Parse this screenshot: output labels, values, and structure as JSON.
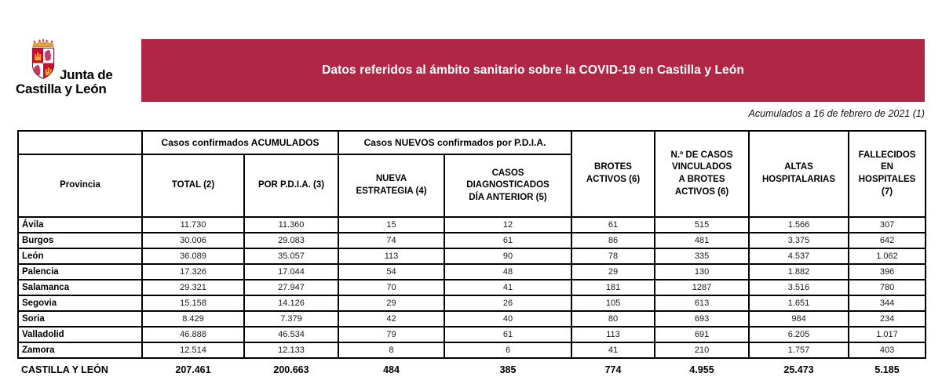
{
  "logo": {
    "line1": "Junta de",
    "line2": "Castilla y León"
  },
  "banner": {
    "title": "Datos referidos al ámbito sanitario sobre la COVID-19 en Castilla y León"
  },
  "subtitle": "Acumulados a 16 de febrero de 2021 (1)",
  "colors": {
    "banner_bg": "#B02746",
    "banner_text": "#FFFFFF",
    "table_border": "#000000",
    "castle_gold": "#EFA62F",
    "lion_red": "#C43B66",
    "quarter_red": "#C8102E"
  },
  "table": {
    "group_headers": {
      "acumulados": "Casos confirmados ACUMULADOS",
      "nuevos": "Casos NUEVOS confirmados por P.D.I.A."
    },
    "column_headers": {
      "provincia": "Provincia",
      "total": "TOTAL (2)",
      "por_pdia": "POR P.D.I.A. (3)",
      "nueva_estrategia": "NUEVA\nESTRATEGIA (4)",
      "diagnosticados": "CASOS\nDIAGNOSTICADOS\nDÍA ANTERIOR (5)",
      "brotes": "BROTES\nACTIVOS (6)",
      "vinculados": "N.º DE CASOS\nVINCULADOS\nA BROTES\nACTIVOS (6)",
      "altas": "ALTAS\nHOSPITALARIAS",
      "fallecidos": "FALLECIDOS\nEN\nHOSPITALES\n(7)"
    },
    "rows": [
      [
        "Ávila",
        "11.730",
        "11.360",
        "15",
        "12",
        "61",
        "515",
        "1.566",
        "307"
      ],
      [
        "Burgos",
        "30.006",
        "29.083",
        "74",
        "61",
        "86",
        "481",
        "3.375",
        "642"
      ],
      [
        "León",
        "36.089",
        "35.057",
        "113",
        "90",
        "78",
        "335",
        "4.537",
        "1.062"
      ],
      [
        "Palencia",
        "17.326",
        "17.044",
        "54",
        "48",
        "29",
        "130",
        "1.882",
        "396"
      ],
      [
        "Salamanca",
        "29.321",
        "27.947",
        "70",
        "41",
        "181",
        "1287",
        "3.516",
        "780"
      ],
      [
        "Segovia",
        "15.158",
        "14.126",
        "29",
        "26",
        "105",
        "613",
        "1.651",
        "344"
      ],
      [
        "Soria",
        "8.429",
        "7.379",
        "42",
        "40",
        "80",
        "693",
        "984",
        "234"
      ],
      [
        "Valladolid",
        "46.888",
        "46.534",
        "79",
        "61",
        "113",
        "691",
        "6.205",
        "1.017"
      ],
      [
        "Zamora",
        "12.514",
        "12.133",
        "8",
        "6",
        "41",
        "210",
        "1.757",
        "403"
      ]
    ],
    "totals": [
      "CASTILLA Y LEÓN",
      "207.461",
      "200.663",
      "484",
      "385",
      "774",
      "4.955",
      "25.473",
      "5.185"
    ]
  }
}
